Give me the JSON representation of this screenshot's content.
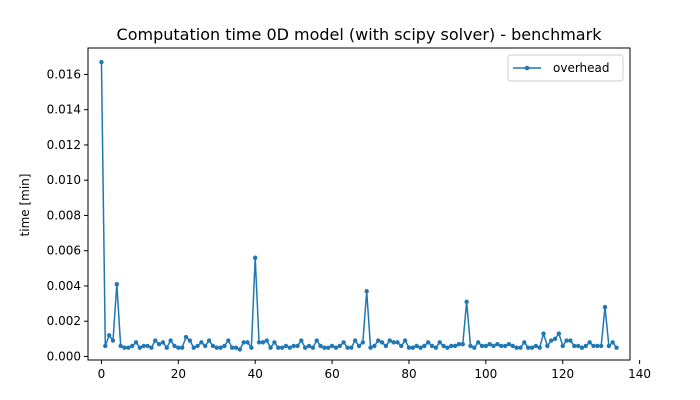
{
  "chart_data": {
    "type": "line",
    "title": "Computation time 0D model (with scipy solver) - benchmark",
    "xlabel": "",
    "ylabel": "time [min]",
    "xlim": [
      -3.5,
      137.5
    ],
    "ylim": [
      -0.0002,
      0.0175
    ],
    "xticks": [
      0,
      20,
      40,
      60,
      80,
      100,
      120,
      140
    ],
    "yticks": [
      0.0,
      0.002,
      0.004,
      0.006,
      0.008,
      0.01,
      0.012,
      0.014,
      0.016
    ],
    "ytick_labels": [
      "0.000",
      "0.002",
      "0.004",
      "0.006",
      "0.008",
      "0.010",
      "0.012",
      "0.014",
      "0.016"
    ],
    "grid": false,
    "legend_position": "top-right",
    "color": "#1f77b4",
    "series": [
      {
        "name": "overhead",
        "marker": "circle",
        "x": [
          0,
          1,
          2,
          3,
          4,
          5,
          6,
          7,
          8,
          9,
          10,
          11,
          12,
          13,
          14,
          15,
          16,
          17,
          18,
          19,
          20,
          21,
          22,
          23,
          24,
          25,
          26,
          27,
          28,
          29,
          30,
          31,
          32,
          33,
          34,
          35,
          36,
          37,
          38,
          39,
          40,
          41,
          42,
          43,
          44,
          45,
          46,
          47,
          48,
          49,
          50,
          51,
          52,
          53,
          54,
          55,
          56,
          57,
          58,
          59,
          60,
          61,
          62,
          63,
          64,
          65,
          66,
          67,
          68,
          69,
          70,
          71,
          72,
          73,
          74,
          75,
          76,
          77,
          78,
          79,
          80,
          81,
          82,
          83,
          84,
          85,
          86,
          87,
          88,
          89,
          90,
          91,
          92,
          93,
          94,
          95,
          96,
          97,
          98,
          99,
          100,
          101,
          102,
          103,
          104,
          105,
          106,
          107,
          108,
          109,
          110,
          111,
          112,
          113,
          114,
          115,
          116,
          117,
          118,
          119,
          120,
          121,
          122,
          123,
          124,
          125,
          126,
          127,
          128,
          129,
          130,
          131,
          132,
          133,
          134
        ],
        "values": [
          0.0167,
          0.0006,
          0.0012,
          0.0009,
          0.0041,
          0.0006,
          0.0005,
          0.0005,
          0.0006,
          0.0008,
          0.0005,
          0.0006,
          0.0006,
          0.0005,
          0.0009,
          0.0007,
          0.0008,
          0.0005,
          0.0009,
          0.0006,
          0.0005,
          0.0005,
          0.0011,
          0.0009,
          0.0005,
          0.0006,
          0.0008,
          0.0006,
          0.0009,
          0.0006,
          0.0005,
          0.0005,
          0.0006,
          0.0009,
          0.0005,
          0.0005,
          0.0004,
          0.0008,
          0.0008,
          0.0005,
          0.0056,
          0.0008,
          0.0008,
          0.0009,
          0.0005,
          0.0008,
          0.0005,
          0.0005,
          0.0006,
          0.0005,
          0.0006,
          0.0006,
          0.0009,
          0.0005,
          0.0006,
          0.0005,
          0.0009,
          0.0006,
          0.0005,
          0.0005,
          0.0006,
          0.0005,
          0.0006,
          0.0008,
          0.0005,
          0.0005,
          0.0009,
          0.0006,
          0.0008,
          0.0037,
          0.0005,
          0.0006,
          0.0009,
          0.0008,
          0.0006,
          0.0009,
          0.0008,
          0.0008,
          0.0006,
          0.0009,
          0.0005,
          0.0005,
          0.0006,
          0.0005,
          0.0006,
          0.0008,
          0.0006,
          0.0005,
          0.0008,
          0.0006,
          0.0005,
          0.0006,
          0.0006,
          0.0007,
          0.0007,
          0.0031,
          0.0006,
          0.0005,
          0.0008,
          0.0006,
          0.0006,
          0.0007,
          0.0006,
          0.0007,
          0.0006,
          0.0006,
          0.0007,
          0.0006,
          0.0005,
          0.0005,
          0.0008,
          0.0005,
          0.0005,
          0.0006,
          0.0005,
          0.0013,
          0.0006,
          0.0009,
          0.001,
          0.0013,
          0.0006,
          0.0009,
          0.0009,
          0.0006,
          0.0006,
          0.0005,
          0.0006,
          0.0008,
          0.0006,
          0.0006,
          0.0006,
          0.0028,
          0.0006,
          0.0008,
          0.0005
        ]
      }
    ]
  }
}
